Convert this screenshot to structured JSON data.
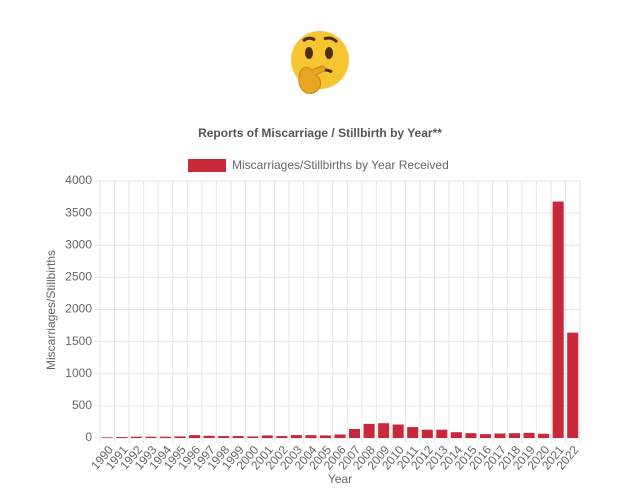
{
  "chart_data": {
    "type": "bar",
    "title": "Reports of Miscarriage / Stillbirth by Year**",
    "x_label": "Year",
    "y_label": "Miscarriages/Stillbirths",
    "categories": [
      "1990",
      "1991",
      "1992",
      "1993",
      "1994",
      "1995",
      "1996",
      "1997",
      "1998",
      "1999",
      "2000",
      "2001",
      "2002",
      "2003",
      "2004",
      "2005",
      "2006",
      "2007",
      "2008",
      "2009",
      "2010",
      "2011",
      "2012",
      "2013",
      "2014",
      "2015",
      "2016",
      "2017",
      "2018",
      "2019",
      "2020",
      "2021",
      "2022"
    ],
    "series": [
      {
        "name": "Miscarriages/Stillbirths by Year Received",
        "color": "#c8283a",
        "values": [
          10,
          15,
          20,
          20,
          20,
          25,
          45,
          35,
          30,
          30,
          25,
          40,
          30,
          45,
          45,
          40,
          55,
          140,
          220,
          230,
          210,
          170,
          130,
          130,
          90,
          75,
          60,
          70,
          75,
          80,
          65,
          3680,
          1640
        ]
      }
    ],
    "ylim": [
      0,
      4000
    ],
    "yticks": [
      0,
      500,
      1000,
      1500,
      2000,
      2500,
      3000,
      3500,
      4000
    ],
    "grid": true,
    "legend": "top"
  }
}
